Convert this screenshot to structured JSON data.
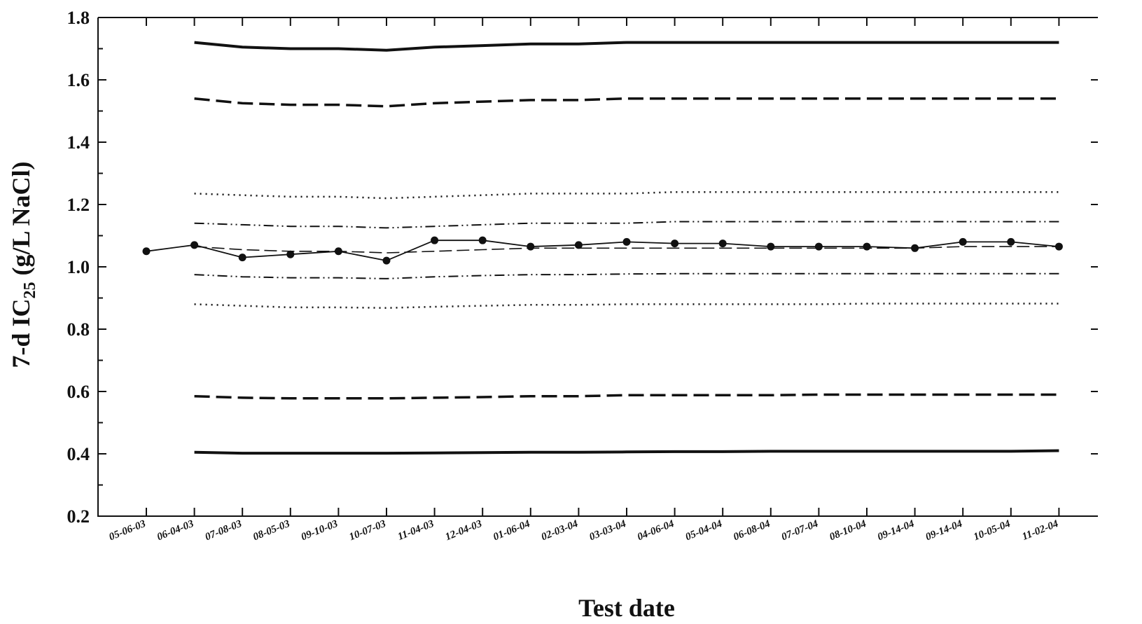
{
  "chart_data": {
    "type": "line",
    "title": "",
    "xlabel": "Test date",
    "ylabel": {
      "prefix": "7-d IC",
      "subscript": "25",
      "suffix": " (g/L NaCl)"
    },
    "ylim": [
      0.2,
      1.8
    ],
    "yticks": [
      "0.2",
      "0.4",
      "0.6",
      "0.8",
      "1.0",
      "1.2",
      "1.4",
      "1.6",
      "1.8"
    ],
    "categories": [
      "05-06-03",
      "06-04-03",
      "07-08-03",
      "08-05-03",
      "09-10-03",
      "10-07-03",
      "11-04-03",
      "12-04-03",
      "01-06-04",
      "02-03-04",
      "03-03-04",
      "04-06-04",
      "05-04-04",
      "06-08-04",
      "07-07-04",
      "08-10-04",
      "09-14-04",
      "09-14-04",
      "10-05-04",
      "11-02-04"
    ],
    "grid": false,
    "legend": "none",
    "series": [
      {
        "style": "solid-markers",
        "color": "#111111",
        "values": [
          1.05,
          1.07,
          1.03,
          1.04,
          1.05,
          1.02,
          1.085,
          1.085,
          1.065,
          1.07,
          1.08,
          1.075,
          1.075,
          1.065,
          1.065,
          1.065,
          1.06,
          1.08,
          1.08,
          1.065
        ]
      },
      {
        "style": "thick-solid",
        "color": "#111111",
        "values": [
          null,
          1.72,
          1.705,
          1.7,
          1.7,
          1.695,
          1.705,
          1.71,
          1.715,
          1.715,
          1.72,
          1.72,
          1.72,
          1.72,
          1.72,
          1.72,
          1.72,
          1.72,
          1.72,
          1.72
        ]
      },
      {
        "style": "thick-dash",
        "color": "#111111",
        "values": [
          null,
          1.54,
          1.525,
          1.52,
          1.52,
          1.515,
          1.525,
          1.53,
          1.535,
          1.535,
          1.54,
          1.54,
          1.54,
          1.54,
          1.54,
          1.54,
          1.54,
          1.54,
          1.54,
          1.54
        ]
      },
      {
        "style": "dotted",
        "color": "#111111",
        "values": [
          null,
          1.235,
          1.23,
          1.225,
          1.225,
          1.22,
          1.225,
          1.23,
          1.235,
          1.235,
          1.235,
          1.24,
          1.24,
          1.24,
          1.24,
          1.24,
          1.24,
          1.24,
          1.24,
          1.24
        ]
      },
      {
        "style": "dash-dot-dot",
        "color": "#111111",
        "values": [
          null,
          1.14,
          1.135,
          1.13,
          1.13,
          1.125,
          1.13,
          1.135,
          1.14,
          1.14,
          1.14,
          1.145,
          1.145,
          1.145,
          1.145,
          1.145,
          1.145,
          1.145,
          1.145,
          1.145
        ]
      },
      {
        "style": "thin-dash",
        "color": "#111111",
        "values": [
          null,
          1.065,
          1.055,
          1.05,
          1.05,
          1.045,
          1.05,
          1.055,
          1.06,
          1.06,
          1.06,
          1.06,
          1.06,
          1.06,
          1.06,
          1.06,
          1.06,
          1.065,
          1.065,
          1.065
        ]
      },
      {
        "style": "dash-dot-dot",
        "color": "#111111",
        "values": [
          null,
          0.975,
          0.968,
          0.965,
          0.965,
          0.962,
          0.968,
          0.972,
          0.975,
          0.975,
          0.977,
          0.978,
          0.978,
          0.978,
          0.978,
          0.978,
          0.978,
          0.978,
          0.978,
          0.978
        ]
      },
      {
        "style": "dotted",
        "color": "#111111",
        "values": [
          null,
          0.88,
          0.875,
          0.87,
          0.87,
          0.868,
          0.872,
          0.875,
          0.878,
          0.878,
          0.88,
          0.88,
          0.88,
          0.88,
          0.88,
          0.882,
          0.882,
          0.882,
          0.882,
          0.882
        ]
      },
      {
        "style": "thick-dash",
        "color": "#111111",
        "values": [
          null,
          0.585,
          0.58,
          0.578,
          0.578,
          0.578,
          0.58,
          0.582,
          0.585,
          0.585,
          0.588,
          0.588,
          0.588,
          0.588,
          0.59,
          0.59,
          0.59,
          0.59,
          0.59,
          0.59
        ]
      },
      {
        "style": "thick-solid",
        "color": "#111111",
        "values": [
          null,
          0.405,
          0.402,
          0.402,
          0.402,
          0.402,
          0.403,
          0.404,
          0.405,
          0.405,
          0.406,
          0.407,
          0.407,
          0.408,
          0.408,
          0.408,
          0.408,
          0.408,
          0.408,
          0.41
        ]
      }
    ]
  }
}
